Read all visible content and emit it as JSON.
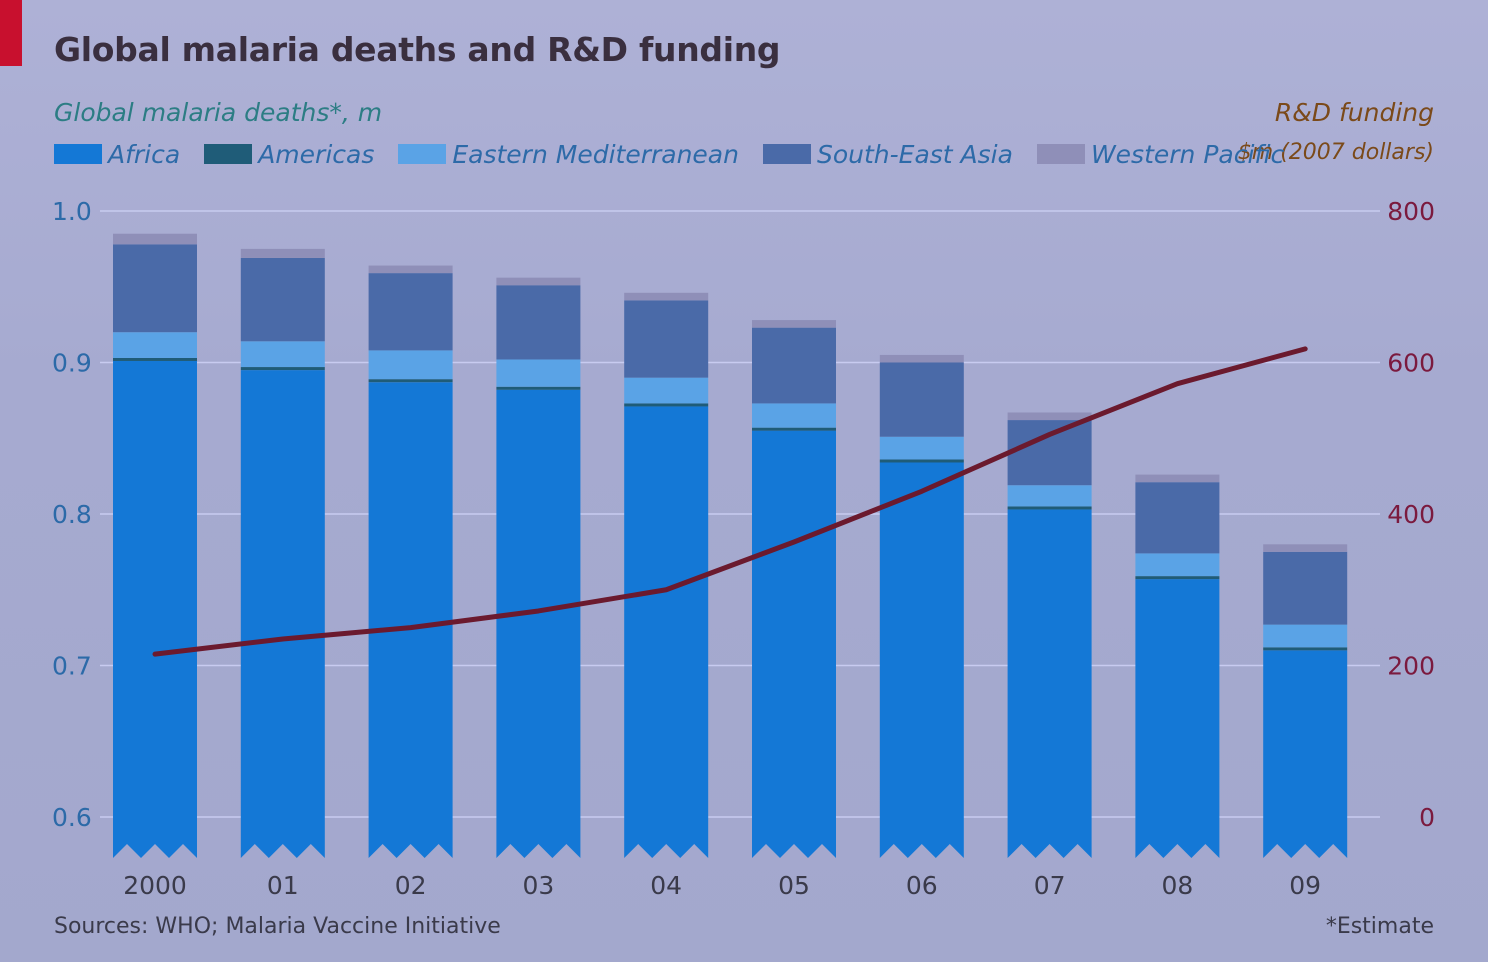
{
  "title": "Global malaria deaths and R&D funding",
  "left_axis_title": "Global malaria deaths*, m",
  "right_axis_title": "R&D funding",
  "right_axis_unit": "$m (2007 dollars)",
  "source": "Sources: WHO; Malaria Vaccine Initiative",
  "footnote": "*Estimate",
  "colors": {
    "Africa": "#1478d6",
    "Americas": "#1f5c78",
    "Eastern Mediterranean": "#5aa3e6",
    "South-East Asia": "#4a6aa8",
    "Western Pacific": "#8f8fb8",
    "funding_line": "#6b1a2e",
    "left_ticks": "#2c6aa8",
    "right_ticks": "#7b1a3e",
    "grid": "#c8cbf0"
  },
  "chart_data": {
    "type": "bar",
    "stacked": true,
    "categories": [
      "2000",
      "01",
      "02",
      "03",
      "04",
      "05",
      "06",
      "07",
      "08",
      "09"
    ],
    "ylabel": "Global malaria deaths*, m",
    "ylim": [
      0.6,
      1.0
    ],
    "yticks": [
      "0.6",
      "0.7",
      "0.8",
      "0.9",
      "1.0"
    ],
    "y2label": "R&D funding, $m (2007 dollars)",
    "y2lim": [
      0,
      800
    ],
    "y2ticks": [
      "0",
      "200",
      "400",
      "600",
      "800"
    ],
    "grid": true,
    "legend_position": "top-left",
    "series": [
      {
        "name": "Africa",
        "values": [
          0.901,
          0.895,
          0.887,
          0.882,
          0.871,
          0.855,
          0.834,
          0.803,
          0.757,
          0.71
        ]
      },
      {
        "name": "Americas",
        "values": [
          0.002,
          0.002,
          0.002,
          0.002,
          0.002,
          0.002,
          0.002,
          0.002,
          0.002,
          0.002
        ]
      },
      {
        "name": "Eastern Mediterranean",
        "values": [
          0.017,
          0.017,
          0.019,
          0.018,
          0.017,
          0.016,
          0.015,
          0.014,
          0.015,
          0.015
        ]
      },
      {
        "name": "South-East Asia",
        "values": [
          0.058,
          0.055,
          0.051,
          0.049,
          0.051,
          0.05,
          0.049,
          0.043,
          0.047,
          0.048
        ]
      },
      {
        "name": "Western Pacific",
        "values": [
          0.007,
          0.006,
          0.005,
          0.005,
          0.005,
          0.005,
          0.005,
          0.005,
          0.005,
          0.005
        ]
      }
    ],
    "line_series": {
      "name": "R&D funding",
      "axis": "right",
      "values": [
        215,
        235,
        250,
        272,
        300,
        363,
        430,
        505,
        572,
        618
      ]
    }
  }
}
